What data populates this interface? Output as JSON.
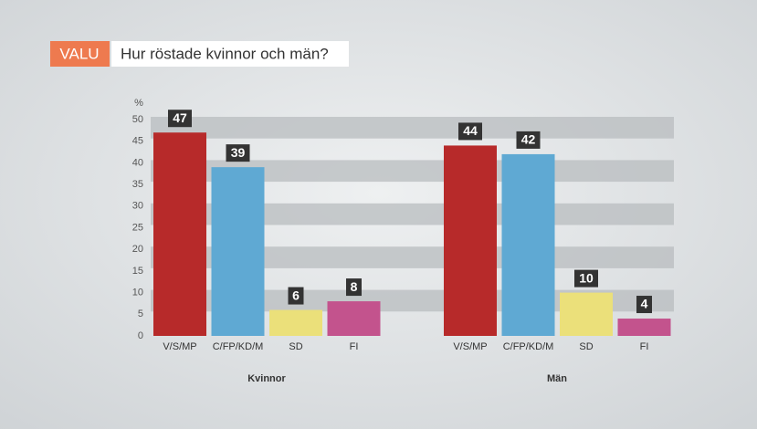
{
  "badge": "VALU",
  "chart_data": {
    "type": "bar",
    "title": "Hur röstade kvinnor och män?",
    "y_label": "%",
    "categories": [
      "V/S/MP",
      "C/FP/KD/M",
      "SD",
      "FI"
    ],
    "colors": [
      "#b72a2a",
      "#5fa9d3",
      "#ebe07a",
      "#c3538d"
    ],
    "series": [
      {
        "name": "Kvinnor",
        "values": [
          47,
          39,
          6,
          8
        ]
      },
      {
        "name": "Män",
        "values": [
          44,
          42,
          10,
          4
        ]
      }
    ],
    "ylim": [
      0,
      50
    ],
    "yticks": [
      0,
      5,
      10,
      15,
      20,
      25,
      30,
      35,
      40,
      45,
      50
    ],
    "grid": true
  }
}
